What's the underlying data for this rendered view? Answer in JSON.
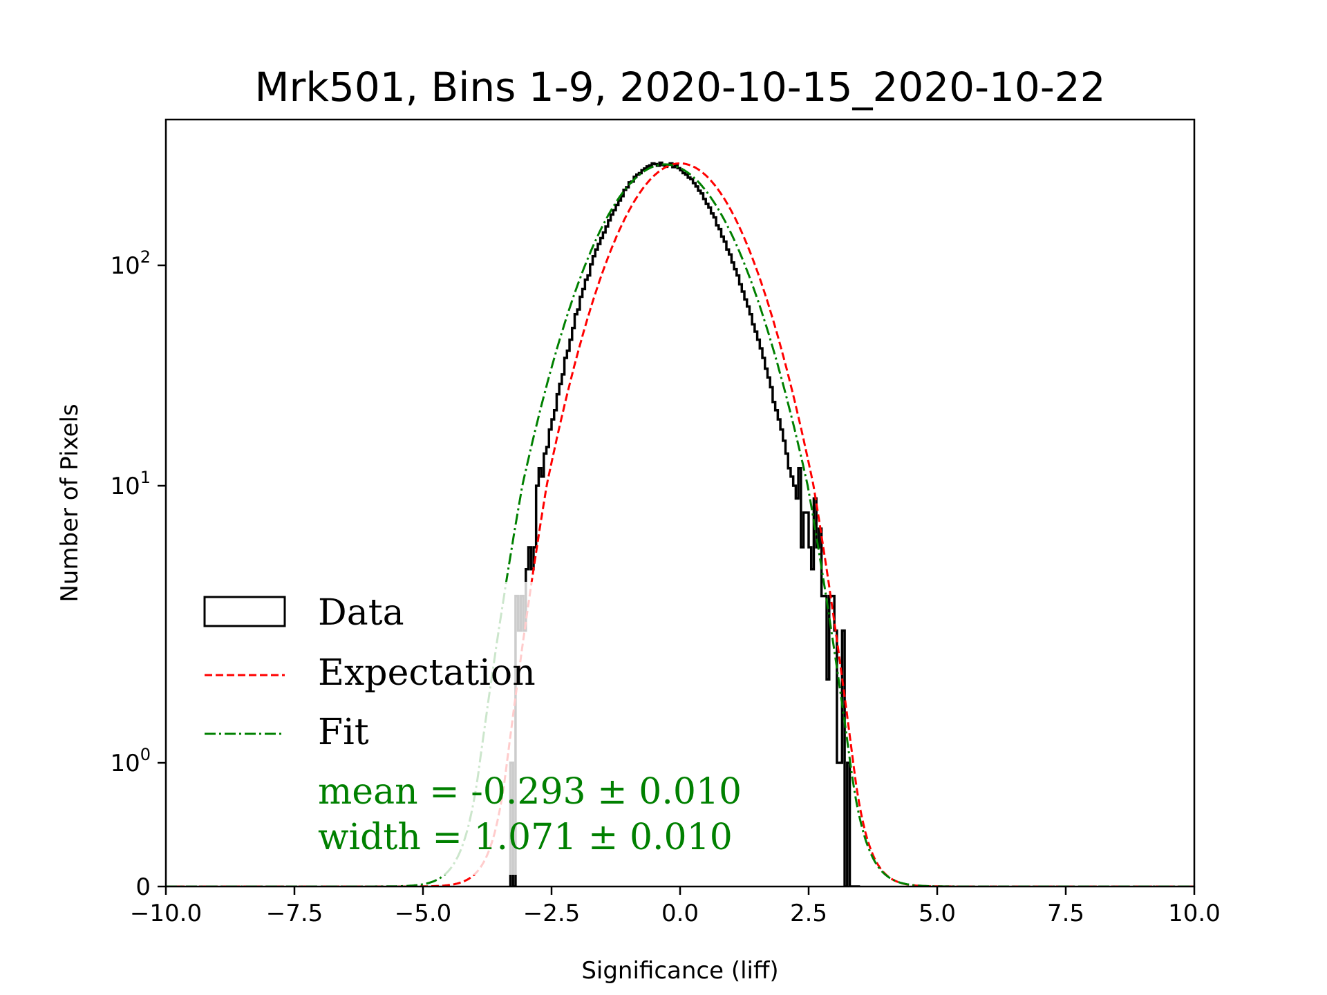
{
  "chart_data": {
    "type": "bar",
    "title": "Mrk501, Bins 1-9, 2020-10-15_2020-10-22",
    "xlabel": "Significance (liff)",
    "ylabel": "Number of Pixels",
    "xlim": [
      -10,
      10
    ],
    "xticks": [
      -10,
      -7.5,
      -5,
      -2.5,
      0,
      2.5,
      5,
      7.5,
      10
    ],
    "xtick_labels": [
      "−10.0",
      "−7.5",
      "−5.0",
      "−2.5",
      "0.0",
      "2.5",
      "5.0",
      "7.5",
      "10.0"
    ],
    "yscale": "symlog",
    "yticks": [
      0,
      1,
      10,
      100
    ],
    "ytick_labels": [
      {
        "base": "0",
        "exp": ""
      },
      {
        "base": "10",
        "exp": "0"
      },
      {
        "base": "10",
        "exp": "1"
      },
      {
        "base": "10",
        "exp": "2"
      }
    ],
    "grid": false,
    "legend_position": "lower-left",
    "legend": [
      {
        "label": "Data",
        "style": "step",
        "color": "#000000"
      },
      {
        "label": "Expectation",
        "style": "dashed",
        "color": "#ff0000"
      },
      {
        "label": "Fit",
        "style": "dashdot",
        "color": "#008000"
      }
    ],
    "annotations": {
      "mean": "mean = -0.293 ± 0.010",
      "width": "width = 1.071 ± 0.010"
    },
    "histogram": {
      "bin_start": -3.3,
      "bin_width": 0.05,
      "counts": [
        1,
        0,
        4,
        3,
        4,
        3,
        5,
        6,
        5,
        6,
        10,
        12,
        11,
        14,
        15,
        18,
        20,
        22,
        26,
        29,
        32,
        38,
        41,
        46,
        52,
        60,
        63,
        72,
        78,
        86,
        90,
        101,
        110,
        118,
        125,
        133,
        141,
        150,
        160,
        170,
        178,
        188,
        197,
        206,
        220,
        226,
        238,
        240,
        252,
        258,
        262,
        270,
        275,
        281,
        284,
        290,
        288,
        283,
        292,
        285,
        280,
        286,
        290,
        279,
        284,
        276,
        270,
        262,
        258,
        250,
        246,
        236,
        228,
        218,
        212,
        200,
        190,
        183,
        172,
        165,
        152,
        146,
        135,
        128,
        118,
        112,
        103,
        96,
        90,
        82,
        76,
        70,
        65,
        60,
        54,
        50,
        46,
        42,
        38,
        34,
        31,
        28,
        24,
        22,
        20,
        18,
        16,
        14,
        12,
        11,
        10,
        9,
        12,
        6,
        8,
        8,
        6,
        5,
        9,
        6,
        7,
        4,
        4,
        2,
        4,
        4,
        3,
        1,
        1,
        3,
        0,
        1,
        0,
        0,
        0,
        0
      ]
    },
    "expectation": {
      "mean": 0.0,
      "width": 1.0,
      "amplitude": 290
    },
    "fit": {
      "mean": -0.293,
      "width": 1.071,
      "amplitude": 287
    },
    "colors": {
      "data": "#000000",
      "expectation": "#ff0000",
      "fit": "#008000"
    }
  }
}
